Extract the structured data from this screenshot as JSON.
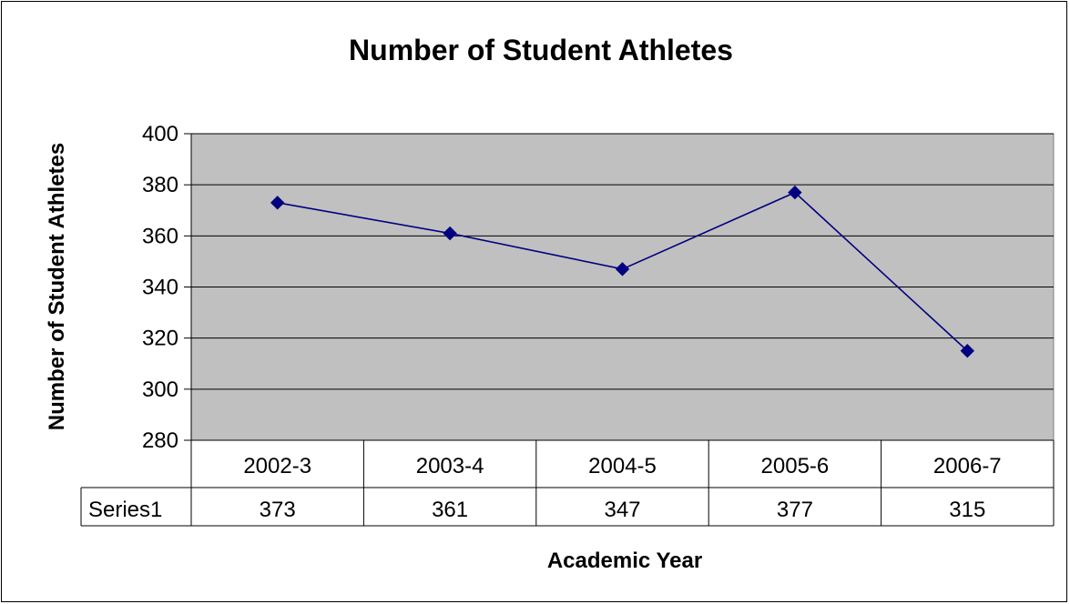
{
  "chart_data": {
    "type": "line",
    "title": "Number of Student Athletes",
    "xlabel": "Academic Year",
    "ylabel": "Number of Student Athletes",
    "categories": [
      "2002-3",
      "2003-4",
      "2004-5",
      "2005-6",
      "2006-7"
    ],
    "series": [
      {
        "name": "Series1",
        "values": [
          373,
          361,
          347,
          377,
          315
        ]
      }
    ],
    "ylim": [
      280,
      400
    ],
    "yticks": [
      280,
      300,
      320,
      340,
      360,
      380,
      400
    ],
    "grid": true,
    "legend": "data-table",
    "colors": {
      "series": "#000080",
      "plot_bg": "#C0C0C0",
      "grid": "#000000"
    }
  }
}
